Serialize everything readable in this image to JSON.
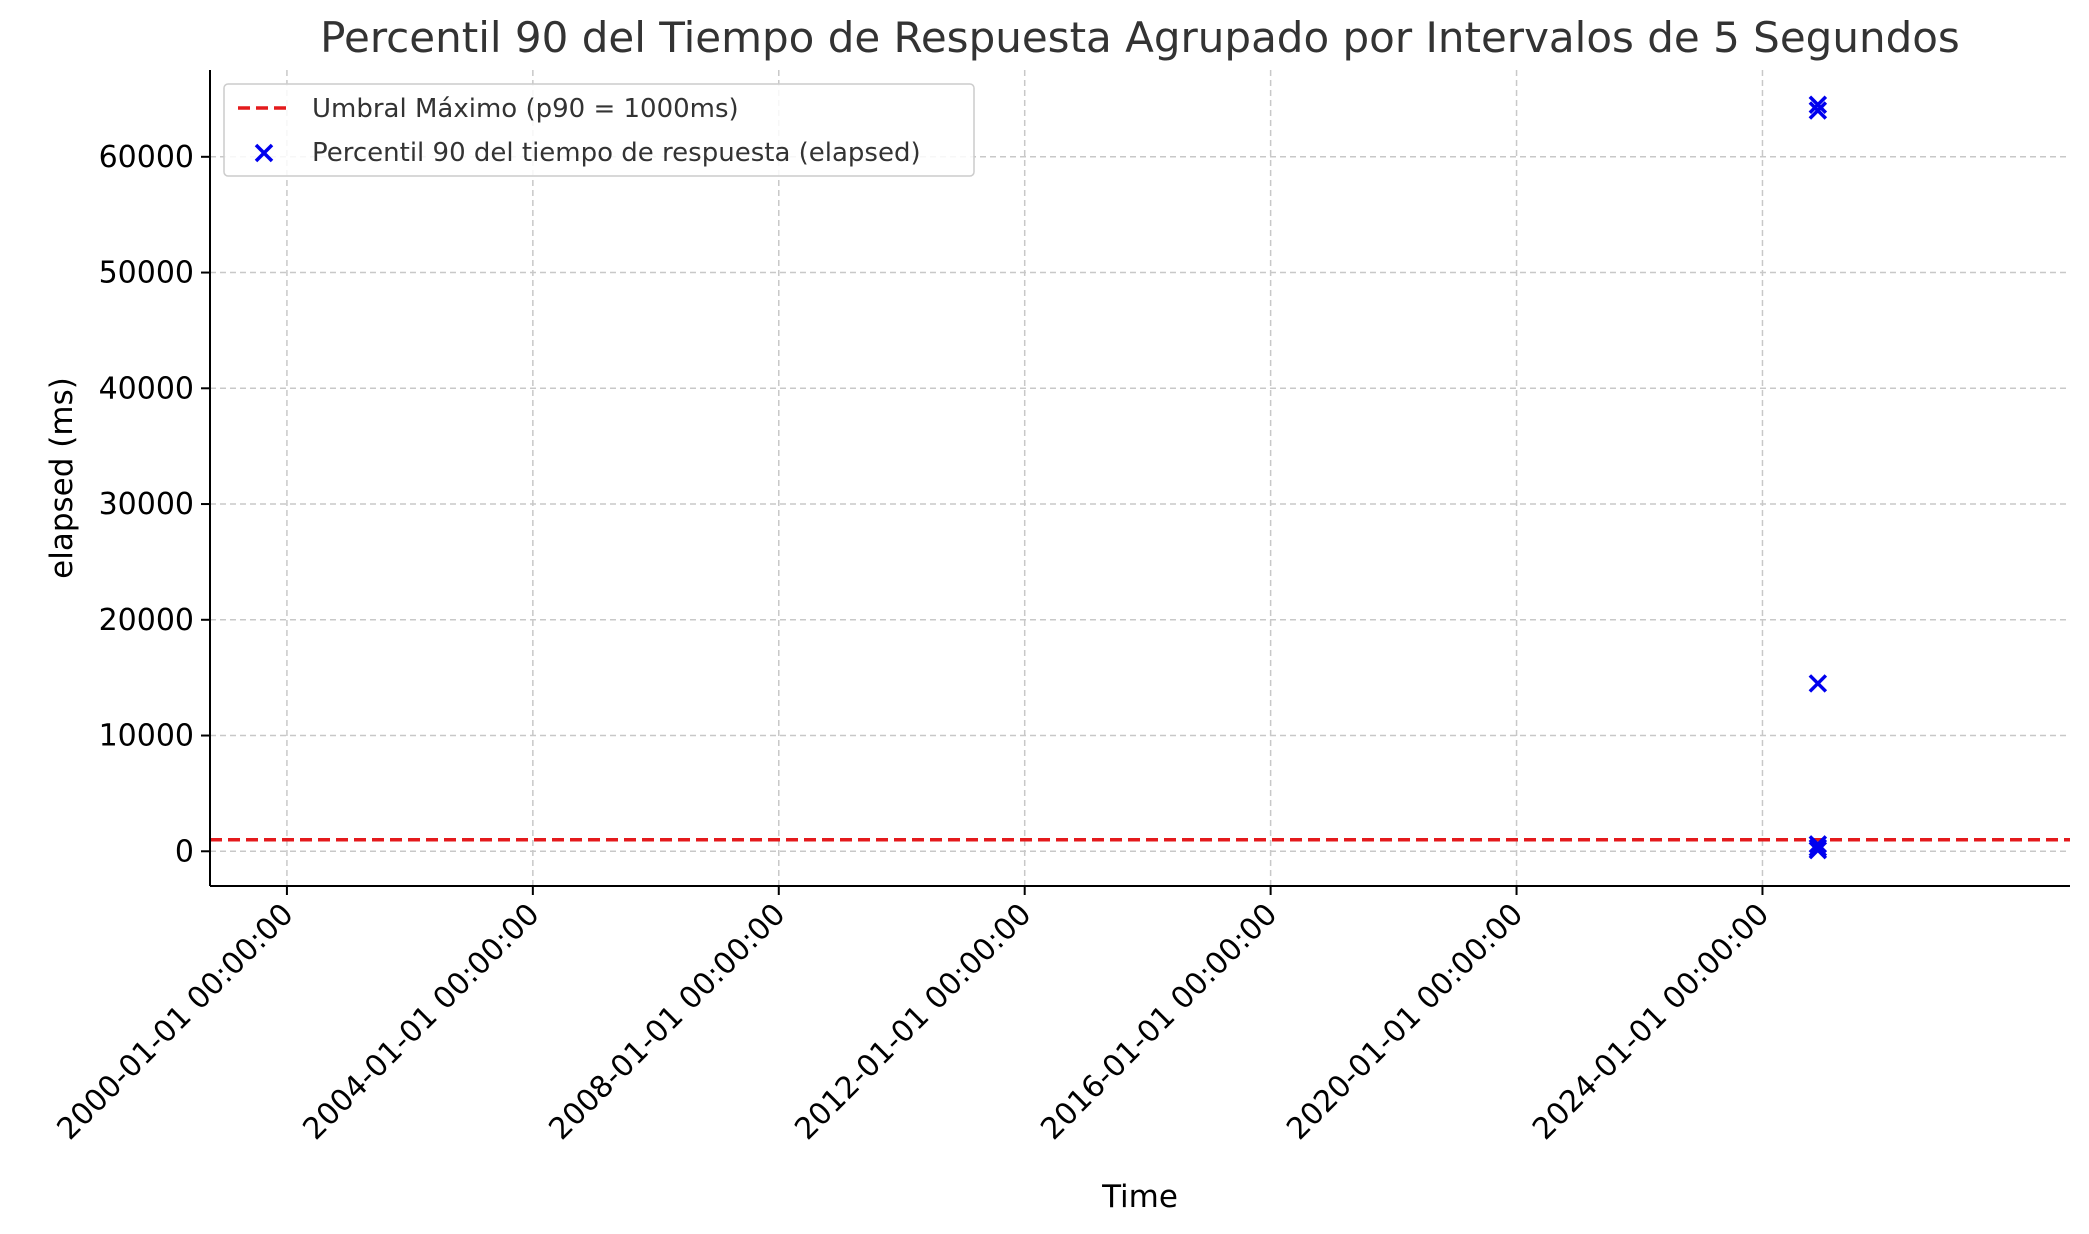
{
  "chart_data": {
    "type": "scatter",
    "title": "Percentil 90 del Tiempo de Respuesta Agrupado por Intervalos de 5 Segundos",
    "xlabel": "Time",
    "ylabel": "elapsed (ms)",
    "xlim": [
      "1998-10-01",
      "2029-01-01"
    ],
    "ylim": [
      -3000,
      67500
    ],
    "x_ticks": [
      "2000-01-01 00:00:00",
      "2004-01-01 00:00:00",
      "2008-01-01 00:00:00",
      "2012-01-01 00:00:00",
      "2016-01-01 00:00:00",
      "2020-01-01 00:00:00",
      "2024-01-01 00:00:00"
    ],
    "y_ticks": [
      0,
      10000,
      20000,
      30000,
      40000,
      50000,
      60000
    ],
    "y_tick_labels": [
      "0",
      "10000",
      "20000",
      "30000",
      "40000",
      "50000",
      "60000"
    ],
    "grid": true,
    "legend_position": "top-left",
    "threshold": {
      "name": "Umbral Máximo (p90 = 1000ms)",
      "value": 1000,
      "color": "#e41a1c",
      "style": "dashed"
    },
    "series": [
      {
        "name": "Percentil 90 del tiempo de respuesta (elapsed)",
        "marker": "x",
        "color": "#0000ee",
        "x": [
          "2024-11-25",
          "2024-11-25",
          "2024-11-25",
          "2024-11-25",
          "2024-11-25",
          "2024-11-25"
        ],
        "y": [
          64500,
          64000,
          14500,
          600,
          300,
          100
        ]
      }
    ]
  }
}
